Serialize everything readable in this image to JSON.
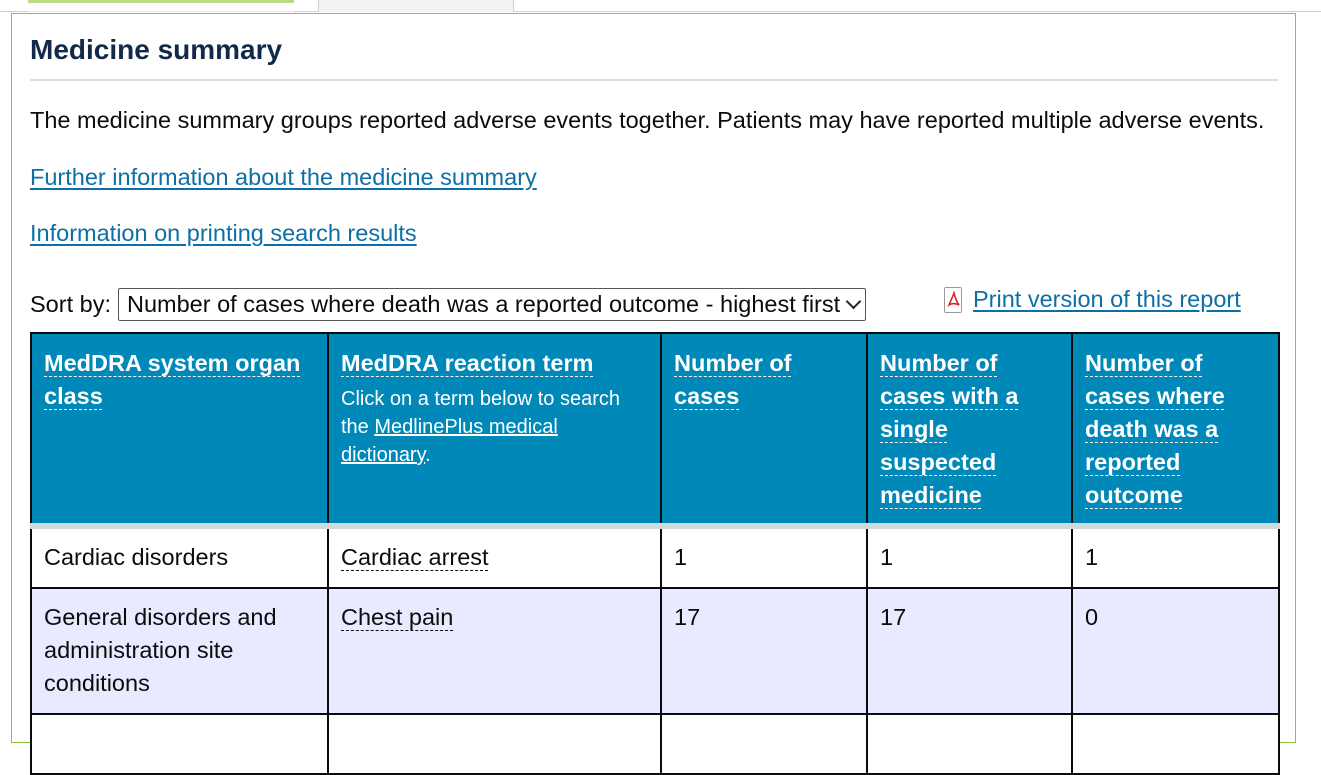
{
  "page": {
    "title": "Medicine summary",
    "intro": "The medicine summary groups reported adverse events together. Patients may have reported multiple adverse events.",
    "link_further_info": "Further information about the medicine summary",
    "link_printing_info": "Information on printing search results"
  },
  "sort": {
    "label": "Sort by:",
    "selected": "Number of cases where death was a reported outcome - highest first"
  },
  "print": {
    "icon": "pdf-icon",
    "label": "Print version of this report"
  },
  "table": {
    "headers": {
      "soc": "MedDRA system organ class",
      "term": "MedDRA reaction term",
      "term_note_prefix": "Click on a term below to search the ",
      "term_note_link": "MedlinePlus medical dictionary",
      "term_note_suffix": ".",
      "cases": "Number of cases",
      "single": "Number of cases with a single suspected medicine",
      "death": "Number of cases where death was a reported outcome"
    },
    "rows": [
      {
        "soc": "Cardiac disorders",
        "term": "Cardiac arrest",
        "cases": "1",
        "single": "1",
        "death": "1"
      },
      {
        "soc": "General disorders and administration site conditions",
        "term": "Chest pain",
        "cases": "17",
        "single": "17",
        "death": "0"
      },
      {
        "soc": "",
        "term": "",
        "cases": "",
        "single": "",
        "death": ""
      }
    ]
  },
  "colors": {
    "header_bg": "#0088b9",
    "link": "#0d6fa5",
    "panel_border": "#8cc63f",
    "row_alt_bg": "#e8ebff",
    "title": "#12294a"
  }
}
